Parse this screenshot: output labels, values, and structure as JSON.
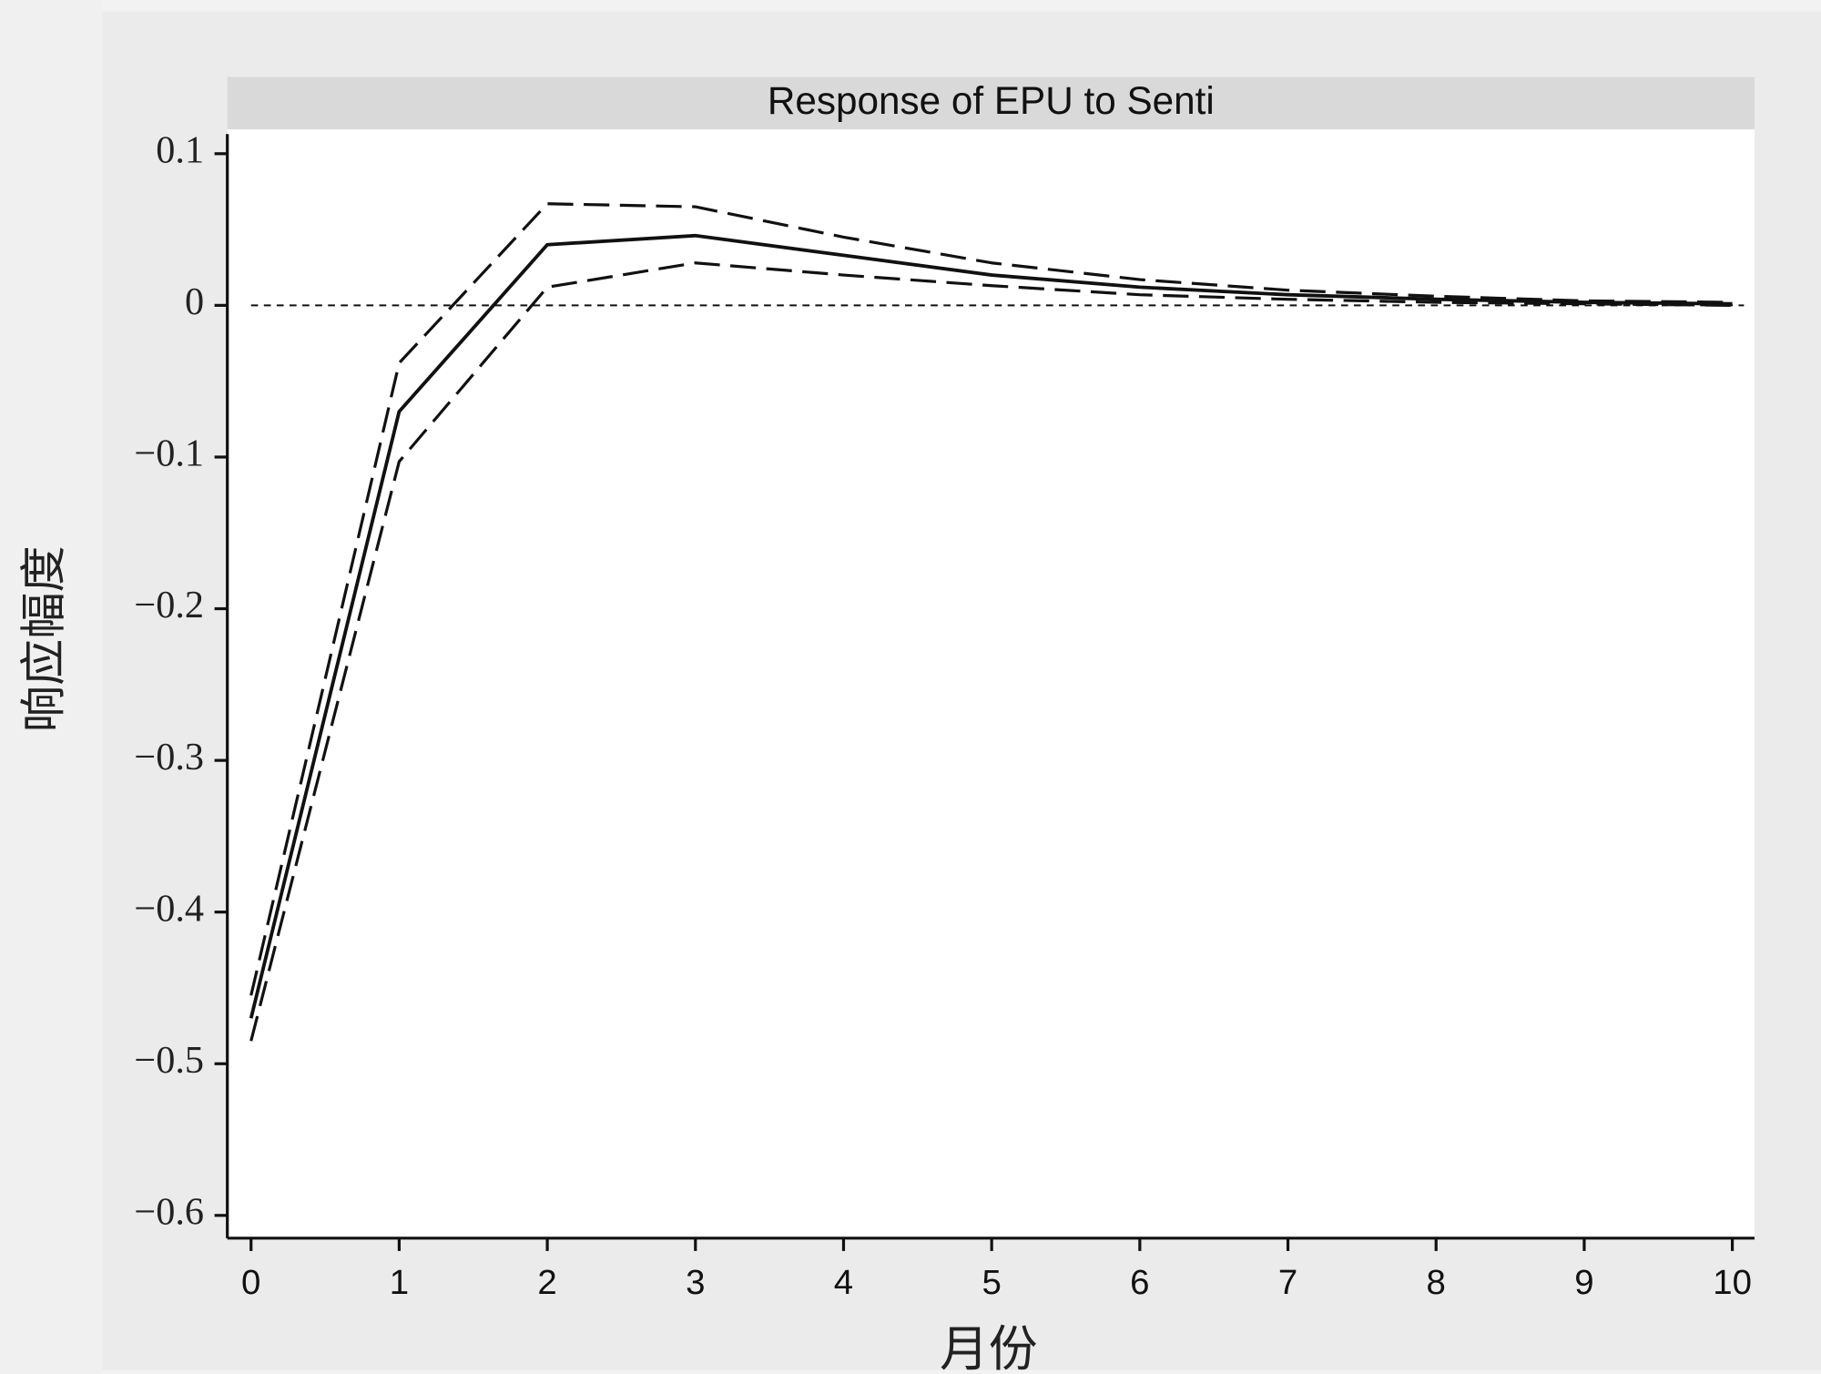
{
  "chart_data": {
    "type": "line",
    "title": "Response of EPU to Senti",
    "xlabel": "月份",
    "ylabel": "响应幅度",
    "x": [
      0,
      1,
      2,
      3,
      4,
      5,
      6,
      7,
      8,
      9,
      10
    ],
    "series": [
      {
        "color": "#111111",
        "dash": "solid",
        "values": [
          -0.47,
          -0.07,
          0.04,
          0.046,
          0.033,
          0.02,
          0.012,
          0.007,
          0.004,
          0.002,
          0.001
        ]
      },
      {
        "color": "#111111",
        "dash": "dashed",
        "values": [
          -0.455,
          -0.038,
          0.067,
          0.065,
          0.045,
          0.028,
          0.017,
          0.01,
          0.006,
          0.003,
          0.002
        ]
      },
      {
        "color": "#111111",
        "dash": "dashed",
        "values": [
          -0.485,
          -0.103,
          0.012,
          0.028,
          0.02,
          0.013,
          0.007,
          0.004,
          0.002,
          0.001,
          0.0
        ]
      }
    ],
    "reference_line": 0,
    "xlim": [
      -0.16,
      10.15
    ],
    "ylim": [
      -0.615,
      0.116
    ],
    "xticks": [
      0,
      1,
      2,
      3,
      4,
      5,
      6,
      7,
      8,
      9,
      10
    ],
    "yticks": [
      0.1,
      0,
      {
        "value": -0.1,
        "label": "−0.1"
      },
      {
        "value": -0.2,
        "label": "−0.2"
      },
      {
        "value": -0.3,
        "label": "−0.3"
      },
      {
        "value": -0.4,
        "label": "−0.4"
      },
      {
        "value": -0.5,
        "label": "−0.5"
      },
      {
        "value": -0.6,
        "label": "−0.6"
      }
    ],
    "grid": false
  }
}
